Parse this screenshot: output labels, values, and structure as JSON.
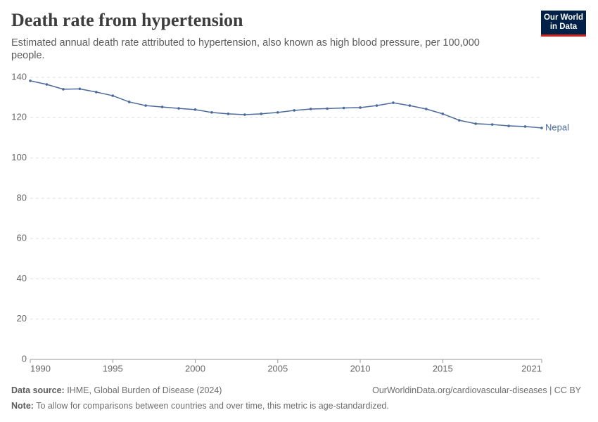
{
  "chart_data": {
    "type": "line",
    "title": "Death rate from hypertension",
    "subtitle": "Estimated annual death rate attributed to hypertension, also known as high blood pressure, per 100,000 people.",
    "logo": [
      "Our World",
      "in Data"
    ],
    "source_label": "Data source:",
    "source": "IHME, Global Burden of Disease (2024)",
    "url": "OurWorldinData.org/cardiovascular-diseases | CC BY",
    "note_label": "Note:",
    "note": "To allow for comparisons between countries and over time, this metric is age-standardized.",
    "x": [
      1990,
      1991,
      1992,
      1993,
      1994,
      1995,
      1996,
      1997,
      1998,
      1999,
      2000,
      2001,
      2002,
      2003,
      2004,
      2005,
      2006,
      2007,
      2008,
      2009,
      2010,
      2011,
      2012,
      2013,
      2014,
      2015,
      2016,
      2017,
      2018,
      2019,
      2020,
      2021
    ],
    "series": [
      {
        "name": "Nepal",
        "color": "#4c6a9c",
        "values": [
          138.3,
          136.5,
          134.1,
          134.3,
          132.7,
          130.9,
          127.8,
          126.0,
          125.3,
          124.6,
          124.0,
          122.6,
          121.9,
          121.5,
          121.9,
          122.6,
          123.6,
          124.3,
          124.5,
          124.8,
          125.0,
          126.0,
          127.4,
          126.0,
          124.3,
          121.9,
          118.7,
          117.0,
          116.6,
          115.9,
          115.6,
          114.9
        ]
      }
    ],
    "xlim": [
      1990,
      2021
    ],
    "xticks": [
      1990,
      1995,
      2000,
      2005,
      2010,
      2015,
      2021
    ],
    "ylim": [
      0,
      140
    ],
    "yticks": [
      0,
      20,
      40,
      60,
      80,
      100,
      120,
      140
    ],
    "grid": true
  }
}
